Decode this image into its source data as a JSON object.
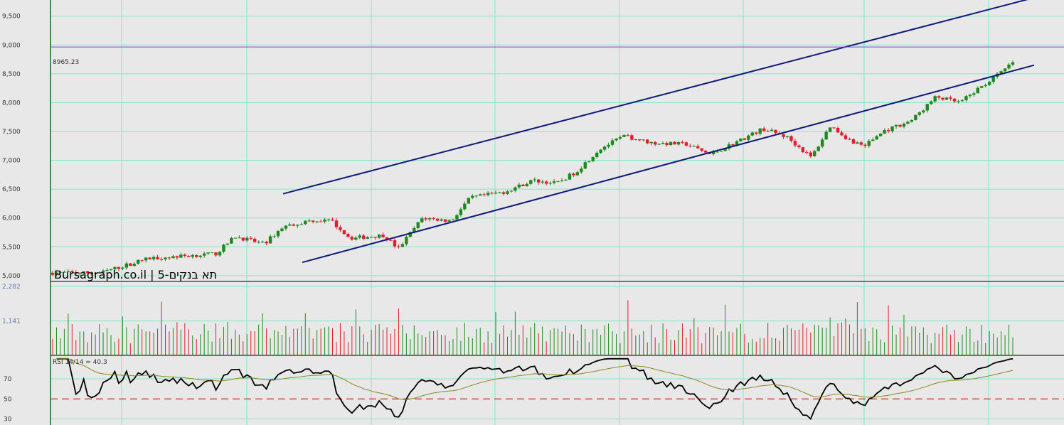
{
  "chart_data": {
    "type": "candlestick",
    "caption": "Bursagraph.co.il | 5-תא בנקים",
    "price_axis": {
      "ticks": [
        "9,500",
        "9,000",
        "8,500",
        "8,000",
        "7,500",
        "7,000",
        "6,500",
        "6,000",
        "5,500",
        "5,000"
      ],
      "tick_values": [
        9500,
        9000,
        8500,
        8000,
        7500,
        7000,
        6500,
        6000,
        5500,
        5000
      ],
      "ylim": [
        4900,
        9780
      ]
    },
    "reference_line": {
      "value": 8965.23,
      "label": "8965.23"
    },
    "price_anchors": [
      {
        "x": 0,
        "y": 5050
      },
      {
        "x": 0.05,
        "y": 5050
      },
      {
        "x": 0.1,
        "y": 5300
      },
      {
        "x": 0.17,
        "y": 5380
      },
      {
        "x": 0.19,
        "y": 5680
      },
      {
        "x": 0.22,
        "y": 5550
      },
      {
        "x": 0.24,
        "y": 5850
      },
      {
        "x": 0.27,
        "y": 5960
      },
      {
        "x": 0.29,
        "y": 5950
      },
      {
        "x": 0.31,
        "y": 5650
      },
      {
        "x": 0.345,
        "y": 5700
      },
      {
        "x": 0.36,
        "y": 5470
      },
      {
        "x": 0.385,
        "y": 6000
      },
      {
        "x": 0.415,
        "y": 5950
      },
      {
        "x": 0.435,
        "y": 6350
      },
      {
        "x": 0.47,
        "y": 6450
      },
      {
        "x": 0.5,
        "y": 6650
      },
      {
        "x": 0.525,
        "y": 6600
      },
      {
        "x": 0.545,
        "y": 6800
      },
      {
        "x": 0.57,
        "y": 7200
      },
      {
        "x": 0.595,
        "y": 7420
      },
      {
        "x": 0.625,
        "y": 7300
      },
      {
        "x": 0.66,
        "y": 7280
      },
      {
        "x": 0.685,
        "y": 7100
      },
      {
        "x": 0.71,
        "y": 7300
      },
      {
        "x": 0.74,
        "y": 7550
      },
      {
        "x": 0.765,
        "y": 7400
      },
      {
        "x": 0.79,
        "y": 7050
      },
      {
        "x": 0.81,
        "y": 7600
      },
      {
        "x": 0.83,
        "y": 7350
      },
      {
        "x": 0.845,
        "y": 7250
      },
      {
        "x": 0.865,
        "y": 7500
      },
      {
        "x": 0.895,
        "y": 7700
      },
      {
        "x": 0.92,
        "y": 8100
      },
      {
        "x": 0.945,
        "y": 8000
      },
      {
        "x": 0.965,
        "y": 8250
      },
      {
        "x": 0.99,
        "y": 8550
      },
      {
        "x": 1.0,
        "y": 8700
      }
    ],
    "channel_lines": [
      {
        "name": "upper",
        "from": {
          "date_index": 0.24,
          "value": 6420
        },
        "to": {
          "date_index": 1.0,
          "value": 9820
        }
      },
      {
        "name": "lower",
        "from": {
          "date_index": 0.26,
          "value": 5230
        },
        "to": {
          "date_index": 1.0,
          "value": 8650
        }
      }
    ],
    "volume_axis": {
      "ticks": [
        "2,282",
        "1,141"
      ],
      "tick_values": [
        2282,
        1141
      ],
      "ylim": [
        0,
        2450
      ]
    },
    "rsi": {
      "label": "RSI 14/14 = 40.3",
      "ticks": [
        "70",
        "50",
        "30"
      ],
      "tick_values": [
        70,
        50,
        30
      ],
      "ylim": [
        24,
        92
      ],
      "threshold": 50
    },
    "colors": {
      "background": "#e8e8e8",
      "grid": "#7fe8c8",
      "up": "#1e8a1e",
      "down": "#e01e2e",
      "channel": "#101a7a",
      "reference": "#6a50d8",
      "rsi_line": "#000000",
      "rsi_signal": "#8a8a20",
      "rsi_threshold": "#d01010"
    }
  }
}
